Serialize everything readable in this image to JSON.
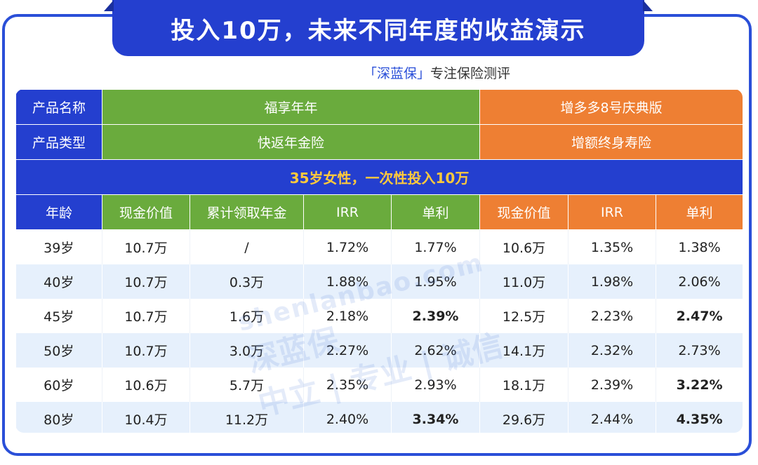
{
  "title": "投入10万，未来不同年度的收益演示",
  "subtitle": {
    "brand": "「深蓝保」",
    "tagline": "专注保险测评"
  },
  "table": {
    "row_product_name": {
      "label": "产品名称",
      "product_a": "福享年年",
      "product_b": "增多多8号庆典版"
    },
    "row_product_type": {
      "label": "产品类型",
      "product_a": "快返年金险",
      "product_b": "增额终身寿险"
    },
    "banner": "35岁女性，一次性投入10万",
    "columns": [
      "年龄",
      "现金价值",
      "累计领取年金",
      "IRR",
      "单利",
      "现金价值",
      "IRR",
      "单利"
    ],
    "rows": [
      [
        "39岁",
        "10.7万",
        "/",
        "1.72%",
        "1.77%",
        "10.6万",
        "1.35%",
        "1.38%"
      ],
      [
        "40岁",
        "10.7万",
        "0.3万",
        "1.88%",
        "1.95%",
        "11.0万",
        "1.98%",
        "2.06%"
      ],
      [
        "45岁",
        "10.7万",
        "1.6万",
        "2.18%",
        "2.39%",
        "12.5万",
        "2.23%",
        "2.47%"
      ],
      [
        "50岁",
        "10.7万",
        "3.0万",
        "2.27%",
        "2.62%",
        "14.1万",
        "2.32%",
        "2.73%"
      ],
      [
        "60岁",
        "10.6万",
        "5.7万",
        "2.35%",
        "2.93%",
        "18.1万",
        "2.39%",
        "3.22%"
      ],
      [
        "80岁",
        "10.4万",
        "11.2万",
        "2.40%",
        "3.34%",
        "29.6万",
        "2.44%",
        "4.35%"
      ]
    ]
  },
  "watermark": {
    "logo": "深蓝保",
    "url": "shenlanbao.com",
    "slogan": "中立 | 专业 | 诚信"
  },
  "colors": {
    "blue": "#243fcf",
    "green": "#6aab3d",
    "orange": "#ee7f33",
    "highlight": "#ffc93c"
  }
}
